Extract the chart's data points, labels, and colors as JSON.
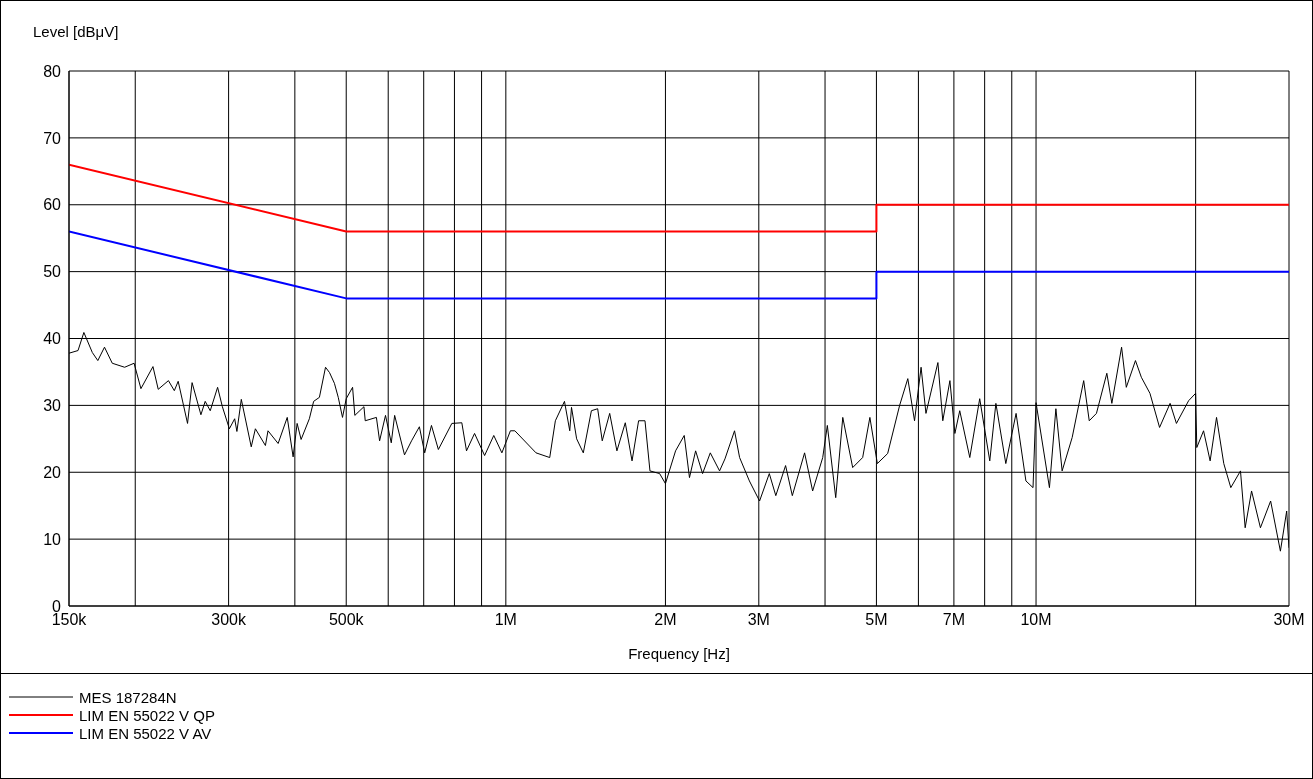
{
  "chart_data": {
    "type": "line",
    "ylabel": "Level [dBμV]",
    "xlabel": "Frequency [Hz]",
    "log": "x",
    "grid": true,
    "legend": "bottom",
    "xlim": [
      150000,
      30000000
    ],
    "ylim": [
      0,
      80
    ],
    "yticks": [
      0,
      10,
      20,
      30,
      40,
      50,
      60,
      70,
      80
    ],
    "xticks": [
      {
        "value": 150000,
        "label": "150k"
      },
      {
        "value": 200000,
        "label": null
      },
      {
        "value": 300000,
        "label": "300k"
      },
      {
        "value": 400000,
        "label": null
      },
      {
        "value": 500000,
        "label": "500k"
      },
      {
        "value": 600000,
        "label": null
      },
      {
        "value": 700000,
        "label": null
      },
      {
        "value": 800000,
        "label": null
      },
      {
        "value": 900000,
        "label": null
      },
      {
        "value": 1000000,
        "label": "1M"
      },
      {
        "value": 2000000,
        "label": "2M"
      },
      {
        "value": 3000000,
        "label": "3M"
      },
      {
        "value": 4000000,
        "label": null
      },
      {
        "value": 5000000,
        "label": "5M"
      },
      {
        "value": 6000000,
        "label": null
      },
      {
        "value": 7000000,
        "label": "7M"
      },
      {
        "value": 8000000,
        "label": null
      },
      {
        "value": 9000000,
        "label": null
      },
      {
        "value": 10000000,
        "label": "10M"
      },
      {
        "value": 20000000,
        "label": null
      },
      {
        "value": 30000000,
        "label": "30M"
      }
    ],
    "series": [
      {
        "name": "MES  187284N",
        "color": "#000000",
        "x": [
          150000,
          156000,
          160000,
          166000,
          170000,
          175000,
          181000,
          191000,
          199000,
          205000,
          216000,
          221000,
          231000,
          237000,
          241000,
          251000,
          256000,
          266000,
          271000,
          277000,
          286000,
          292000,
          301000,
          308000,
          311000,
          317000,
          331000,
          337000,
          352000,
          356000,
          372000,
          387000,
          397000,
          404000,
          411000,
          426000,
          434000,
          445000,
          457000,
          465000,
          475000,
          483000,
          492000,
          500000,
          514000,
          519000,
          540000,
          543000,
          570000,
          578000,
          593000,
          608000,
          617000,
          644000,
          664000,
          687000,
          703000,
          724000,
          746000,
          791000,
          826000,
          843000,
          873000,
          912000,
          949000,
          983000,
          1020000,
          1040000,
          1140000,
          1210000,
          1240000,
          1290000,
          1320000,
          1330000,
          1360000,
          1400000,
          1450000,
          1490000,
          1520000,
          1570000,
          1620000,
          1680000,
          1730000,
          1780000,
          1830000,
          1870000,
          1950000,
          2000000,
          2090000,
          2170000,
          2220000,
          2280000,
          2350000,
          2430000,
          2530000,
          2590000,
          2700000,
          2760000,
          2880000,
          3010000,
          3140000,
          3230000,
          3370000,
          3470000,
          3660000,
          3790000,
          3960000,
          4040000,
          4190000,
          4320000,
          4510000,
          4710000,
          4860000,
          5020000,
          5250000,
          5530000,
          5730000,
          5900000,
          6070000,
          6200000,
          6530000,
          6670000,
          6880000,
          7030000,
          7180000,
          7500000,
          7830000,
          8180000,
          8400000,
          8770000,
          9170000,
          9570000,
          9870000,
          10000000,
          10600000,
          10900000,
          11200000,
          11700000,
          12300000,
          12600000,
          13000000,
          13600000,
          13900000,
          14500000,
          14800000,
          15400000,
          15800000,
          16400000,
          17100000,
          17900000,
          18400000,
          19400000,
          20000000,
          20100000,
          20700000,
          21300000,
          21900000,
          22600000,
          23300000,
          24300000,
          24800000,
          25500000,
          26500000,
          27700000,
          28900000,
          29700000,
          30000000
        ],
        "values": [
          37.8,
          38.2,
          40.9,
          37.9,
          36.7,
          38.7,
          36.3,
          35.7,
          36.3,
          32.5,
          35.8,
          32.4,
          33.7,
          32.2,
          33.6,
          27.3,
          33.4,
          28.6,
          30.6,
          29.2,
          32.7,
          29.8,
          26.5,
          28.0,
          26.1,
          30.9,
          23.8,
          26.5,
          24.0,
          26.2,
          24.3,
          28.2,
          22.3,
          27.3,
          24.9,
          28.0,
          30.6,
          31.2,
          35.7,
          34.9,
          33.3,
          31.2,
          28.2,
          31.0,
          32.7,
          28.5,
          29.8,
          27.7,
          28.2,
          24.7,
          28.5,
          24.4,
          28.5,
          22.6,
          24.7,
          26.8,
          22.9,
          27.0,
          23.4,
          27.3,
          27.4,
          23.2,
          25.8,
          22.5,
          25.5,
          22.9,
          26.2,
          26.2,
          22.9,
          22.2,
          27.7,
          30.6,
          26.2,
          29.7,
          25.0,
          22.9,
          29.2,
          29.5,
          24.7,
          28.8,
          23.2,
          27.4,
          21.7,
          27.7,
          27.7,
          20.2,
          19.8,
          18.3,
          23.2,
          25.5,
          19.2,
          23.2,
          19.8,
          22.9,
          20.2,
          22.0,
          26.2,
          22.2,
          18.7,
          15.7,
          19.8,
          16.5,
          21.0,
          16.5,
          22.9,
          17.2,
          22.2,
          27.0,
          16.2,
          28.2,
          20.7,
          22.2,
          28.2,
          21.3,
          22.8,
          30.0,
          34.0,
          27.7,
          35.7,
          28.8,
          36.4,
          27.7,
          33.7,
          25.8,
          29.2,
          22.2,
          31.0,
          21.7,
          30.3,
          21.3,
          28.8,
          18.7,
          17.7,
          30.4,
          17.7,
          29.5,
          20.2,
          25.2,
          33.7,
          27.7,
          28.8,
          34.8,
          30.3,
          38.7,
          32.7,
          36.7,
          34.2,
          31.8,
          26.7,
          30.3,
          27.3,
          30.7,
          31.8,
          23.7,
          26.2,
          21.7,
          28.2,
          21.3,
          17.7,
          20.2,
          11.7,
          17.2,
          11.7,
          15.7,
          8.2,
          14.2,
          8.7
        ]
      },
      {
        "name": "LIM  EN 55022 V QP",
        "color": "#ff0000",
        "x": [
          150000,
          500000,
          5000000,
          5000000,
          30000000
        ],
        "values": [
          66,
          56,
          56,
          60,
          60
        ]
      },
      {
        "name": "LIM  EN 55022 V AV",
        "color": "#0000ff",
        "x": [
          150000,
          500000,
          5000000,
          5000000,
          30000000
        ],
        "values": [
          56,
          46,
          46,
          50,
          50
        ]
      }
    ]
  }
}
